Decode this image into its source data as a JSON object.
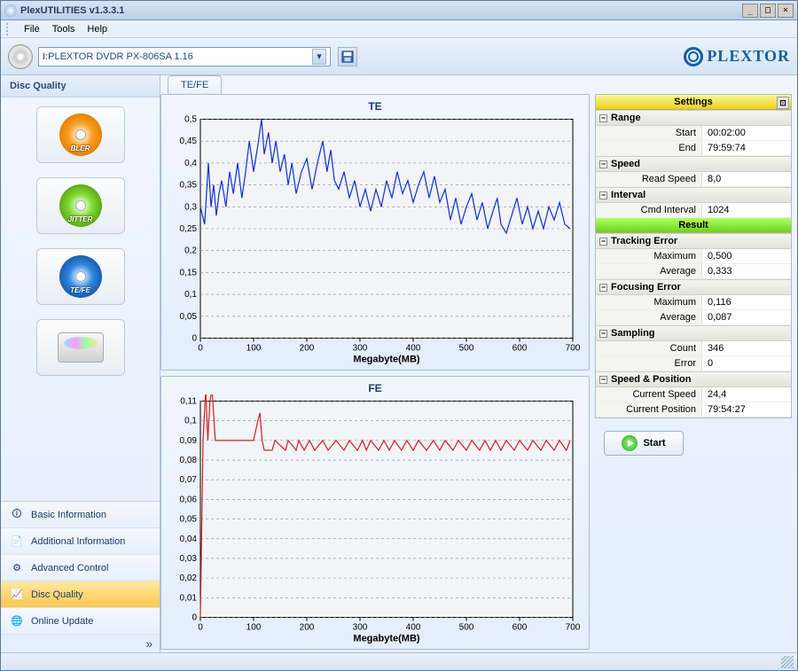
{
  "window": {
    "title": "PlexUTILITIES v1.3.3.1"
  },
  "menu": {
    "file": "File",
    "tools": "Tools",
    "help": "Help"
  },
  "toolbar": {
    "device": "I:PLEXTOR DVDR   PX-806SA  1.16",
    "logo": "PLEXTOR"
  },
  "sidebar": {
    "section_title": "Disc Quality",
    "icons": {
      "bler": "BLER",
      "jitter": "JITTER",
      "tefe": "TE/FE"
    },
    "nav": {
      "basic": "Basic Information",
      "additional": "Additional Information",
      "advanced": "Advanced Control",
      "disc_quality": "Disc Quality",
      "online": "Online Update"
    }
  },
  "tab": {
    "tefe": "TE/FE"
  },
  "chart_te": {
    "title": "TE",
    "xlabel": "Megabyte(MB)",
    "type": "line",
    "line_color": "#1030d0",
    "grid_color": "#888888",
    "background": "#f2f4f8",
    "border": "#000000",
    "xlim": [
      0,
      700
    ],
    "xtick_step": 100,
    "ylim": [
      0,
      0.5
    ],
    "ytick_step": 0.05,
    "yticks": [
      "0",
      "0,05",
      "0,1",
      "0,15",
      "0,2",
      "0,25",
      "0,3",
      "0,35",
      "0,4",
      "0,45",
      "0,5"
    ],
    "data": [
      [
        0,
        0.3
      ],
      [
        8,
        0.26
      ],
      [
        15,
        0.4
      ],
      [
        20,
        0.3
      ],
      [
        25,
        0.35
      ],
      [
        30,
        0.28
      ],
      [
        35,
        0.33
      ],
      [
        40,
        0.36
      ],
      [
        48,
        0.3
      ],
      [
        55,
        0.38
      ],
      [
        62,
        0.33
      ],
      [
        70,
        0.4
      ],
      [
        78,
        0.32
      ],
      [
        85,
        0.38
      ],
      [
        92,
        0.45
      ],
      [
        100,
        0.38
      ],
      [
        108,
        0.44
      ],
      [
        115,
        0.5
      ],
      [
        120,
        0.42
      ],
      [
        128,
        0.47
      ],
      [
        135,
        0.4
      ],
      [
        142,
        0.45
      ],
      [
        150,
        0.38
      ],
      [
        158,
        0.42
      ],
      [
        165,
        0.35
      ],
      [
        172,
        0.4
      ],
      [
        180,
        0.33
      ],
      [
        190,
        0.38
      ],
      [
        200,
        0.41
      ],
      [
        210,
        0.34
      ],
      [
        220,
        0.4
      ],
      [
        230,
        0.45
      ],
      [
        238,
        0.38
      ],
      [
        245,
        0.43
      ],
      [
        252,
        0.36
      ],
      [
        260,
        0.34
      ],
      [
        270,
        0.38
      ],
      [
        280,
        0.32
      ],
      [
        290,
        0.36
      ],
      [
        300,
        0.3
      ],
      [
        310,
        0.34
      ],
      [
        320,
        0.29
      ],
      [
        330,
        0.34
      ],
      [
        340,
        0.3
      ],
      [
        350,
        0.36
      ],
      [
        360,
        0.32
      ],
      [
        370,
        0.38
      ],
      [
        380,
        0.33
      ],
      [
        390,
        0.36
      ],
      [
        400,
        0.31
      ],
      [
        410,
        0.35
      ],
      [
        420,
        0.38
      ],
      [
        430,
        0.32
      ],
      [
        440,
        0.37
      ],
      [
        450,
        0.31
      ],
      [
        460,
        0.34
      ],
      [
        470,
        0.27
      ],
      [
        480,
        0.32
      ],
      [
        490,
        0.26
      ],
      [
        500,
        0.3
      ],
      [
        510,
        0.33
      ],
      [
        520,
        0.27
      ],
      [
        530,
        0.31
      ],
      [
        540,
        0.25
      ],
      [
        550,
        0.29
      ],
      [
        558,
        0.32
      ],
      [
        565,
        0.26
      ],
      [
        575,
        0.24
      ],
      [
        585,
        0.28
      ],
      [
        595,
        0.32
      ],
      [
        605,
        0.26
      ],
      [
        615,
        0.3
      ],
      [
        625,
        0.25
      ],
      [
        635,
        0.29
      ],
      [
        645,
        0.25
      ],
      [
        655,
        0.3
      ],
      [
        665,
        0.27
      ],
      [
        675,
        0.31
      ],
      [
        685,
        0.26
      ],
      [
        695,
        0.25
      ]
    ]
  },
  "chart_fe": {
    "title": "FE",
    "xlabel": "Megabyte(MB)",
    "type": "line",
    "line_color": "#d02020",
    "grid_color": "#888888",
    "background": "#f2f4f8",
    "border": "#000000",
    "xlim": [
      0,
      700
    ],
    "xtick_step": 100,
    "ylim": [
      0,
      0.11
    ],
    "ytick_step": 0.01,
    "yticks": [
      "0",
      "0,01",
      "0,02",
      "0,03",
      "0,04",
      "0,05",
      "0,06",
      "0,07",
      "0,08",
      "0,09",
      "0,1",
      "0,11"
    ],
    "data": [
      [
        0,
        0.0
      ],
      [
        5,
        0.09
      ],
      [
        10,
        0.116
      ],
      [
        14,
        0.09
      ],
      [
        18,
        0.11
      ],
      [
        22,
        0.116
      ],
      [
        28,
        0.09
      ],
      [
        50,
        0.09
      ],
      [
        80,
        0.09
      ],
      [
        100,
        0.09
      ],
      [
        108,
        0.1
      ],
      [
        112,
        0.104
      ],
      [
        116,
        0.09
      ],
      [
        120,
        0.085
      ],
      [
        135,
        0.085
      ],
      [
        140,
        0.09
      ],
      [
        160,
        0.085
      ],
      [
        165,
        0.09
      ],
      [
        180,
        0.085
      ],
      [
        185,
        0.09
      ],
      [
        195,
        0.085
      ],
      [
        205,
        0.09
      ],
      [
        215,
        0.085
      ],
      [
        230,
        0.09
      ],
      [
        240,
        0.085
      ],
      [
        255,
        0.09
      ],
      [
        270,
        0.085
      ],
      [
        280,
        0.09
      ],
      [
        295,
        0.085
      ],
      [
        305,
        0.09
      ],
      [
        312,
        0.085
      ],
      [
        320,
        0.09
      ],
      [
        335,
        0.085
      ],
      [
        345,
        0.09
      ],
      [
        355,
        0.085
      ],
      [
        365,
        0.09
      ],
      [
        378,
        0.085
      ],
      [
        388,
        0.09
      ],
      [
        400,
        0.085
      ],
      [
        410,
        0.09
      ],
      [
        425,
        0.085
      ],
      [
        438,
        0.09
      ],
      [
        450,
        0.085
      ],
      [
        460,
        0.09
      ],
      [
        475,
        0.085
      ],
      [
        485,
        0.09
      ],
      [
        500,
        0.085
      ],
      [
        510,
        0.09
      ],
      [
        525,
        0.085
      ],
      [
        535,
        0.09
      ],
      [
        545,
        0.085
      ],
      [
        555,
        0.09
      ],
      [
        565,
        0.085
      ],
      [
        575,
        0.09
      ],
      [
        590,
        0.085
      ],
      [
        600,
        0.09
      ],
      [
        615,
        0.085
      ],
      [
        625,
        0.09
      ],
      [
        640,
        0.085
      ],
      [
        650,
        0.09
      ],
      [
        665,
        0.085
      ],
      [
        675,
        0.09
      ],
      [
        688,
        0.085
      ],
      [
        695,
        0.09
      ]
    ]
  },
  "results": {
    "hd_settings": "Settings",
    "hd_result": "Result",
    "range": {
      "label": "Range",
      "start_k": "Start",
      "start_v": "00:02:00",
      "end_k": "End",
      "end_v": "79:59:74"
    },
    "speed": {
      "label": "Speed",
      "read_k": "Read Speed",
      "read_v": "8,0"
    },
    "interval": {
      "label": "Interval",
      "cmd_k": "Cmd Interval",
      "cmd_v": "1024"
    },
    "tracking": {
      "label": "Tracking Error",
      "max_k": "Maximum",
      "max_v": "0,500",
      "avg_k": "Average",
      "avg_v": "0,333"
    },
    "focusing": {
      "label": "Focusing Error",
      "max_k": "Maximum",
      "max_v": "0,116",
      "avg_k": "Average",
      "avg_v": "0,087"
    },
    "sampling": {
      "label": "Sampling",
      "count_k": "Count",
      "count_v": "346",
      "err_k": "Error",
      "err_v": "0"
    },
    "sp": {
      "label": "Speed & Position",
      "cs_k": "Current Speed",
      "cs_v": "24,4",
      "cp_k": "Current Position",
      "cp_v": "79:54:27"
    },
    "start": "Start"
  }
}
